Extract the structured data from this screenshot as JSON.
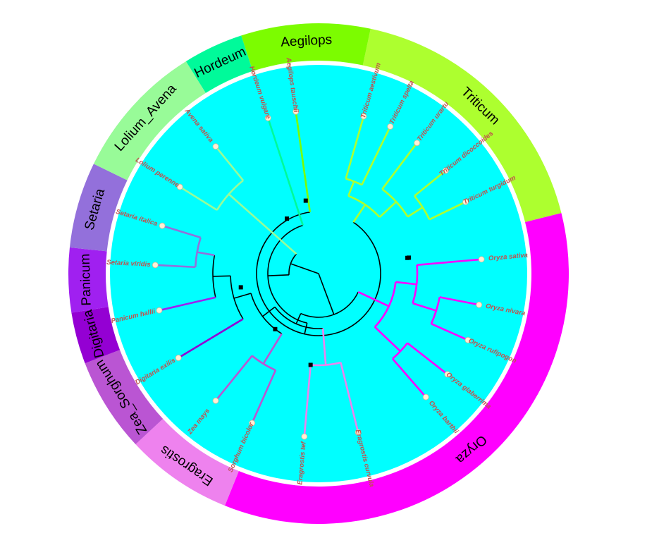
{
  "colors": {
    "background_disc": "#00ffff",
    "leaf_label": "#c0504d",
    "tip_marker": "#ffefd5",
    "backbone": "#000000"
  },
  "genera": [
    {
      "name": "Triticum",
      "color": "#adff2f"
    },
    {
      "name": "Oryza",
      "color": "#ff00ff"
    },
    {
      "name": "Eragrostis",
      "color": "#ee82ee"
    },
    {
      "name": "Zea_Sorghum",
      "color": "#ba55d3"
    },
    {
      "name": "Digitaria",
      "color": "#9400d3"
    },
    {
      "name": "Panicum",
      "color": "#a020f0"
    },
    {
      "name": "Setaria",
      "color": "#9370db"
    },
    {
      "name": "Lolium_Avena",
      "color": "#98fb98"
    },
    {
      "name": "Hordeum",
      "color": "#00fa9a"
    },
    {
      "name": "Aegilops",
      "color": "#7cfc00"
    }
  ],
  "species": [
    {
      "name": "Triticum aestivum",
      "genus": "Triticum"
    },
    {
      "name": "Triticum spelta",
      "genus": "Triticum"
    },
    {
      "name": "Triticum urartu",
      "genus": "Triticum"
    },
    {
      "name": "Triticum dicoccoides",
      "genus": "Triticum"
    },
    {
      "name": "Triticum turgidum",
      "genus": "Triticum"
    },
    {
      "name": "Oryza sativa",
      "genus": "Oryza"
    },
    {
      "name": "Oryza nivara",
      "genus": "Oryza"
    },
    {
      "name": "Oryza rufipogon",
      "genus": "Oryza"
    },
    {
      "name": "Oryza glaberrima",
      "genus": "Oryza"
    },
    {
      "name": "Oryza barthii",
      "genus": "Oryza"
    },
    {
      "name": "Eragrostis curvula",
      "genus": "Eragrostis"
    },
    {
      "name": "Eragrostis tef",
      "genus": "Eragrostis"
    },
    {
      "name": "Sorghum bicolor",
      "genus": "Zea_Sorghum"
    },
    {
      "name": "Zea mays",
      "genus": "Zea_Sorghum"
    },
    {
      "name": "Digitaria exilis",
      "genus": "Digitaria"
    },
    {
      "name": "Panicum hallii",
      "genus": "Panicum"
    },
    {
      "name": "Setaria viridis",
      "genus": "Setaria"
    },
    {
      "name": "Setaria italica",
      "genus": "Setaria"
    },
    {
      "name": "Lolium perenne",
      "genus": "Lolium_Avena"
    },
    {
      "name": "Avena sativa",
      "genus": "Lolium_Avena"
    },
    {
      "name": "Hordeum vulgare",
      "genus": "Hordeum"
    },
    {
      "name": "Aegilops tauschii",
      "genus": "Aegilops"
    }
  ]
}
